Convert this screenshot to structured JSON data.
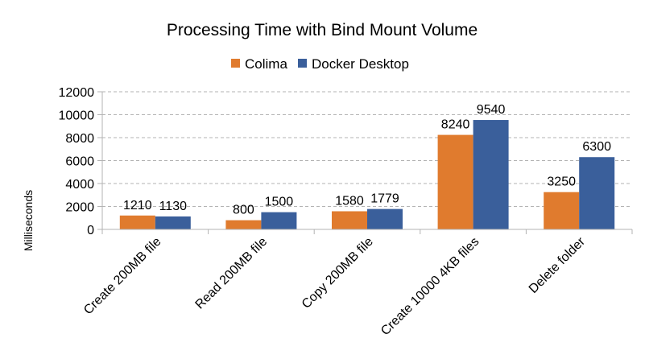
{
  "chart_data": {
    "type": "bar",
    "title": "Processing Time with Bind Mount Volume",
    "xlabel": "",
    "ylabel": "Milliseconds",
    "ylim": [
      0,
      12000
    ],
    "yticks": [
      0,
      2000,
      4000,
      6000,
      8000,
      10000,
      12000
    ],
    "grid": true,
    "legend_position": "top-center",
    "categories": [
      "Create 200MB file",
      "Read 200MB file",
      "Copy 200MB file",
      "Create 10000 4KB files",
      "Delete folder"
    ],
    "series": [
      {
        "name": "Colima",
        "color": "#e07b2e",
        "values": [
          1210,
          800,
          1580,
          8240,
          3250
        ]
      },
      {
        "name": "Docker Desktop",
        "color": "#3a5f9b",
        "values": [
          1130,
          1500,
          1779,
          9540,
          6300
        ]
      }
    ]
  }
}
